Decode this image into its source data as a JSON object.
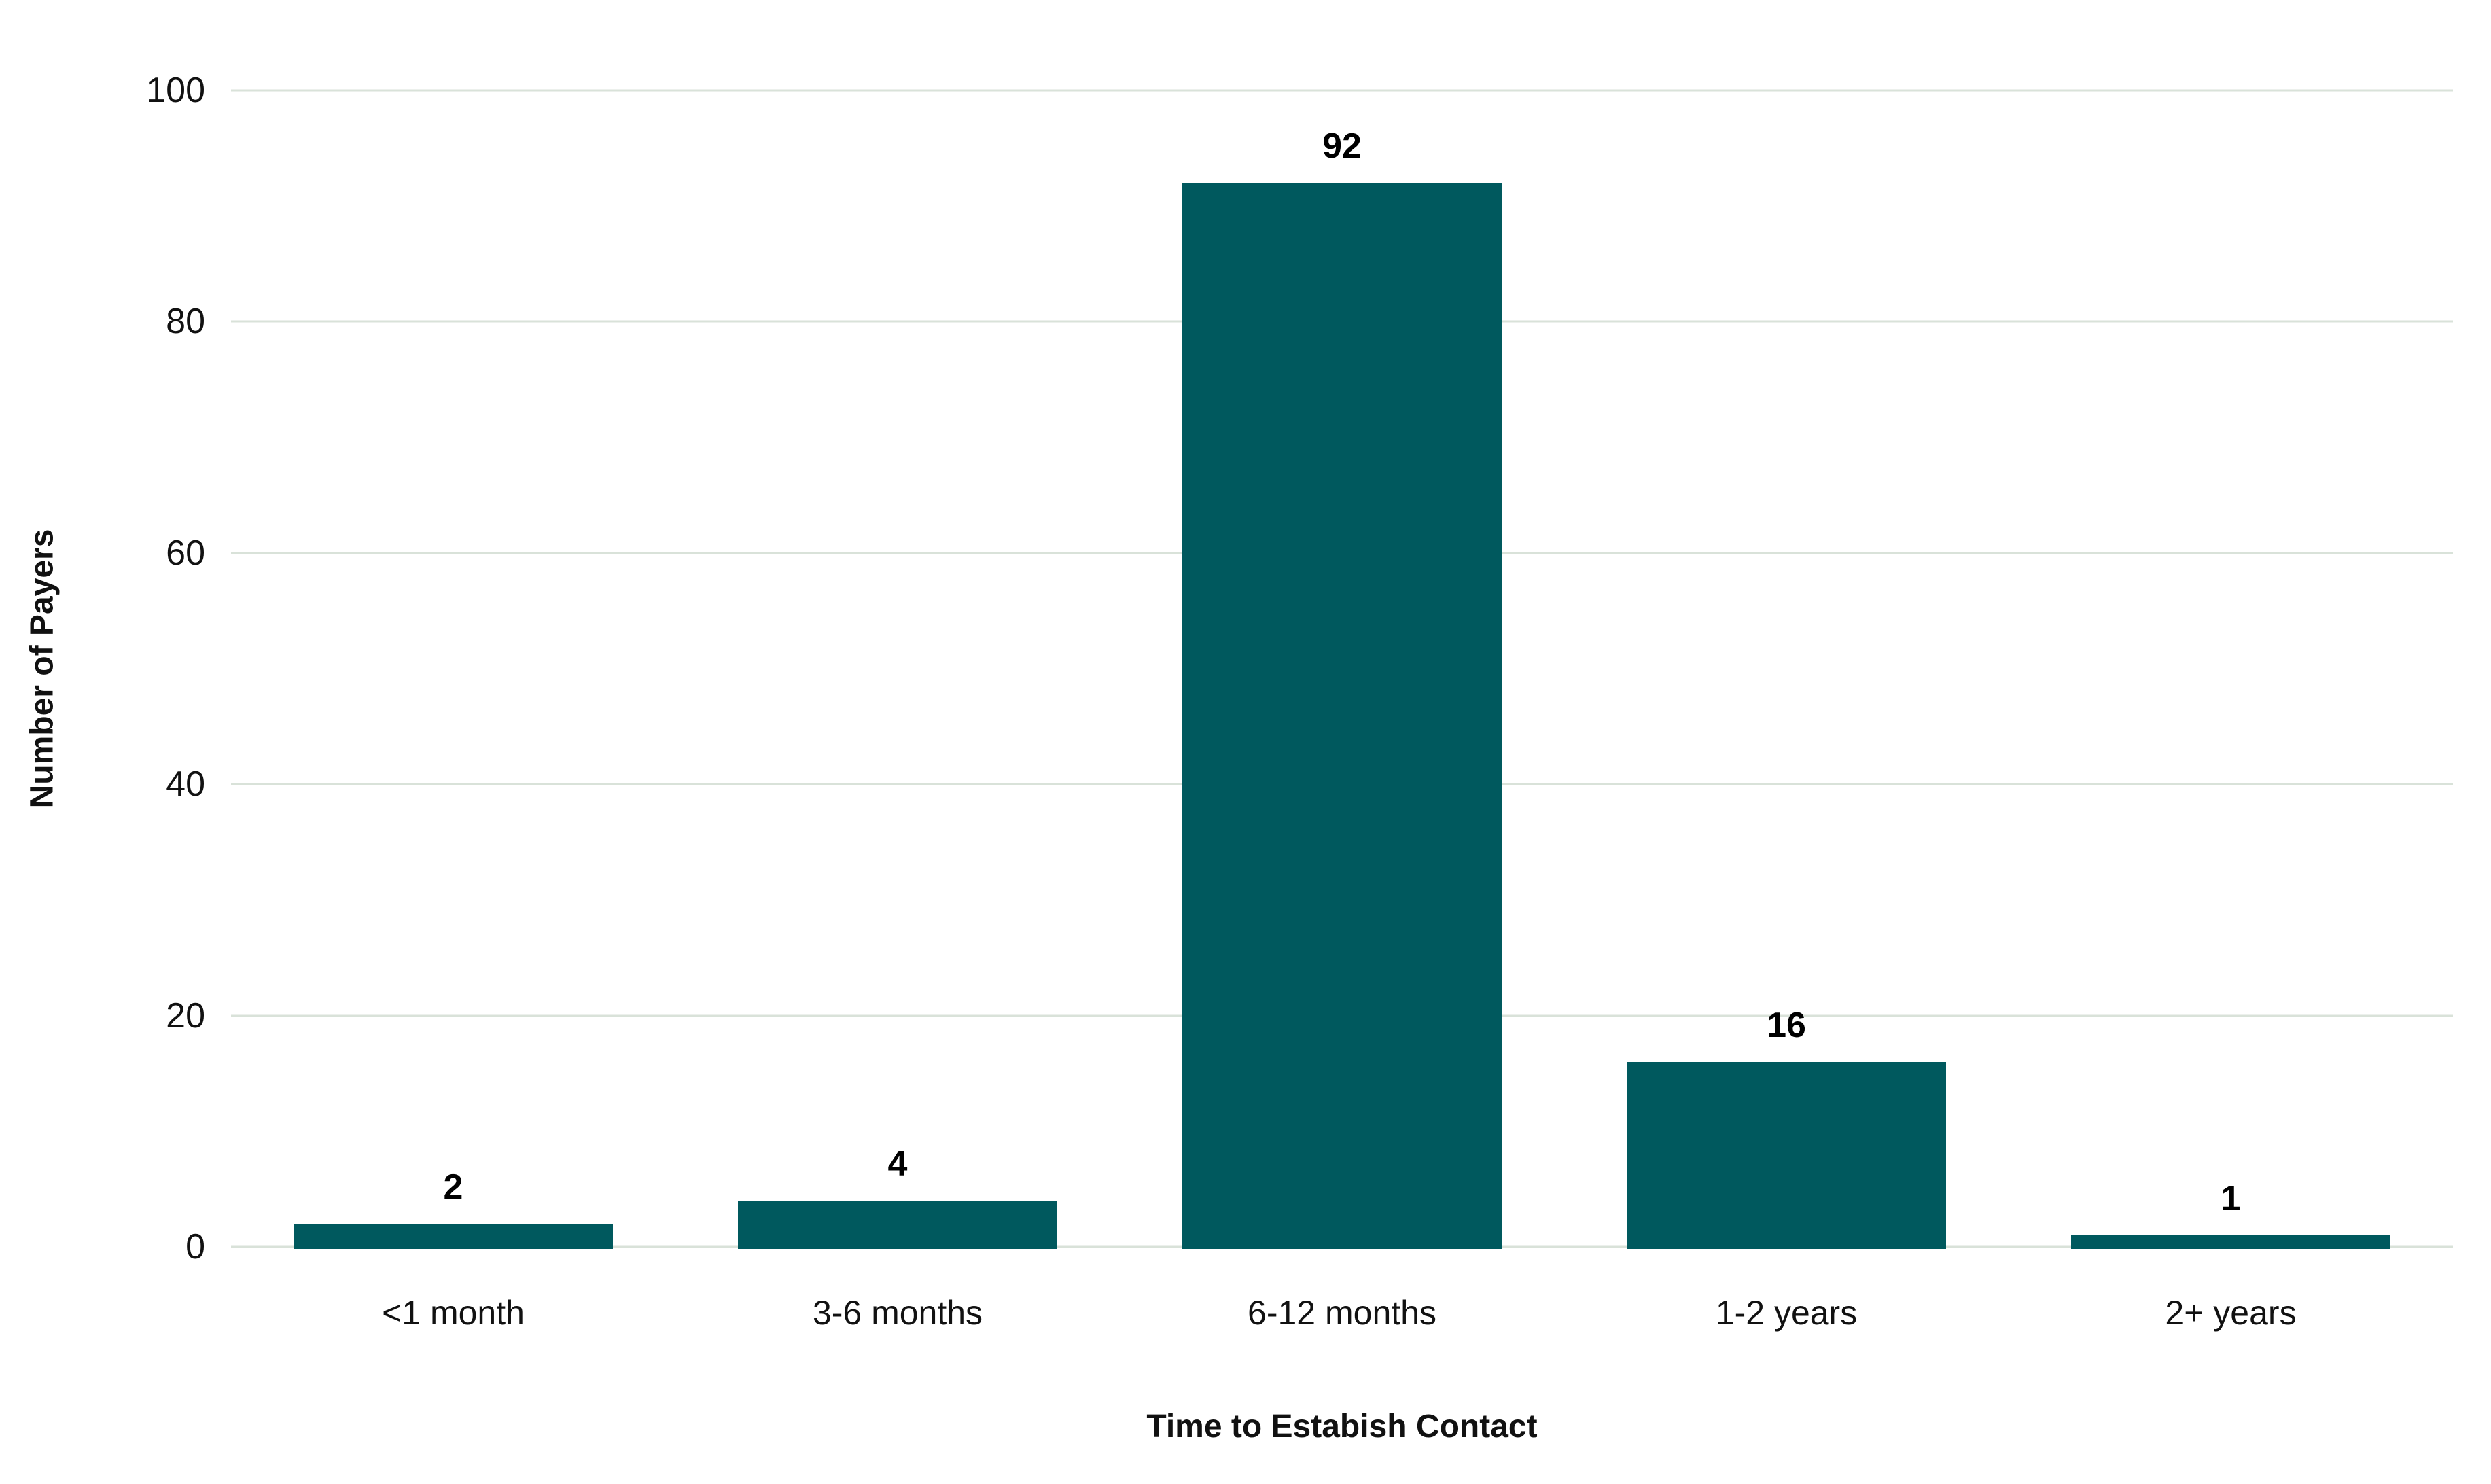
{
  "chart_data": {
    "type": "bar",
    "title": "",
    "categories": [
      "<1 month",
      "3-6 months",
      "6-12 months",
      "1-2 years",
      "2+ years"
    ],
    "values": [
      2,
      4,
      92,
      16,
      1
    ],
    "xlabel": "Time to Estabish Contact",
    "ylabel": "Number of Payers",
    "ylim": [
      0,
      100
    ],
    "yticks": [
      0,
      20,
      40,
      60,
      80,
      100
    ],
    "grid": "horizontal",
    "legend": "none",
    "colors": {
      "bar": "#00595E",
      "gridline": "#D9E2D9",
      "text": "#111111",
      "value_label": "#000000",
      "background": "#FFFFFF"
    }
  }
}
